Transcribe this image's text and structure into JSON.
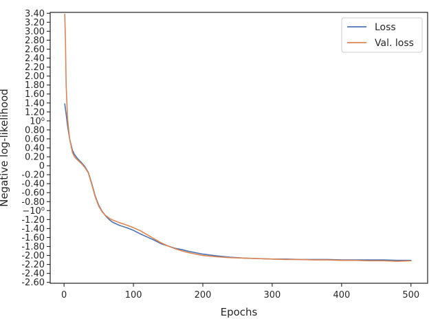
{
  "chart_data": {
    "type": "line",
    "xlabel": "Epochs",
    "ylabel": "Negative log-likelihood",
    "xlim": [
      -20,
      524
    ],
    "ylim": [
      -2.62,
      3.42
    ],
    "xticks": [
      0,
      100,
      200,
      300,
      400,
      500
    ],
    "xtick_labels": [
      "0",
      "100",
      "200",
      "300",
      "400",
      "500"
    ],
    "yticks": [
      -2.6,
      -2.4,
      -2.2,
      -2.0,
      -1.8,
      -1.6,
      -1.4,
      -1.2,
      -1.0,
      -0.8,
      -0.6,
      -0.4,
      -0.2,
      0.0,
      0.2,
      0.4,
      0.6,
      0.8,
      1.0,
      1.2,
      1.4,
      1.6,
      1.8,
      2.0,
      2.2,
      2.4,
      2.6,
      2.8,
      3.0,
      3.2,
      3.4
    ],
    "ytick_labels": [
      "-2.60",
      "-2.40",
      "-2.20",
      "-2.00",
      "-1.80",
      "-1.60",
      "-1.40",
      "-1.20",
      "−10⁰",
      "-0.80",
      "-0.60",
      "-0.40",
      "-0.20",
      "0",
      "0.20",
      "0.40",
      "0.60",
      "0.80",
      "10⁰",
      "1.20",
      "1.40",
      "1.60",
      "1.80",
      "2.00",
      "2.20",
      "2.40",
      "2.60",
      "2.80",
      "3.00",
      "3.20",
      "3.40"
    ],
    "grid": false,
    "legend_position": "top-right",
    "series": [
      {
        "name": "Loss",
        "color": "#4c72b0",
        "x": [
          1,
          3,
          5,
          8,
          12,
          15,
          20,
          25,
          30,
          35,
          40,
          45,
          50,
          55,
          60,
          65,
          70,
          80,
          90,
          100,
          110,
          120,
          130,
          140,
          150,
          160,
          170,
          180,
          190,
          200,
          220,
          240,
          260,
          280,
          300,
          320,
          340,
          360,
          380,
          400,
          420,
          440,
          460,
          480,
          500
        ],
        "y": [
          1.38,
          1.15,
          0.9,
          0.6,
          0.35,
          0.25,
          0.15,
          0.07,
          -0.02,
          -0.15,
          -0.4,
          -0.68,
          -0.88,
          -1.02,
          -1.12,
          -1.2,
          -1.26,
          -1.33,
          -1.38,
          -1.44,
          -1.52,
          -1.59,
          -1.66,
          -1.74,
          -1.79,
          -1.84,
          -1.87,
          -1.91,
          -1.94,
          -1.97,
          -2.01,
          -2.04,
          -2.06,
          -2.07,
          -2.08,
          -2.08,
          -2.09,
          -2.09,
          -2.09,
          -2.1,
          -2.1,
          -2.1,
          -2.1,
          -2.11,
          -2.11
        ]
      },
      {
        "name": "Val. loss",
        "color": "#dd8452",
        "x": [
          1,
          2,
          3,
          5,
          8,
          12,
          15,
          20,
          25,
          30,
          35,
          40,
          45,
          50,
          55,
          60,
          65,
          70,
          80,
          90,
          100,
          110,
          120,
          130,
          140,
          150,
          160,
          170,
          180,
          190,
          200,
          220,
          240,
          260,
          280,
          300,
          320,
          340,
          360,
          380,
          400,
          420,
          440,
          460,
          480,
          500
        ],
        "y": [
          3.38,
          2.8,
          1.8,
          1.05,
          0.6,
          0.3,
          0.2,
          0.12,
          0.05,
          -0.04,
          -0.16,
          -0.42,
          -0.7,
          -0.9,
          -1.03,
          -1.11,
          -1.17,
          -1.21,
          -1.27,
          -1.32,
          -1.38,
          -1.45,
          -1.54,
          -1.63,
          -1.72,
          -1.79,
          -1.85,
          -1.9,
          -1.94,
          -1.97,
          -2.0,
          -2.03,
          -2.05,
          -2.06,
          -2.07,
          -2.08,
          -2.09,
          -2.09,
          -2.1,
          -2.1,
          -2.11,
          -2.11,
          -2.12,
          -2.12,
          -2.13,
          -2.12
        ]
      }
    ]
  }
}
